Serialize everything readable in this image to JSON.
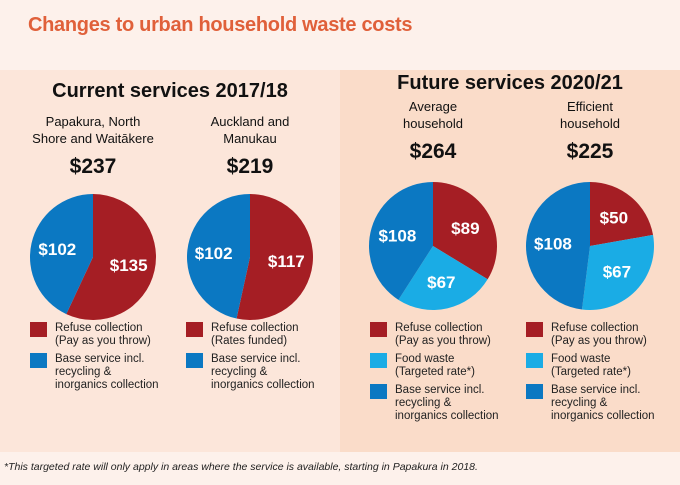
{
  "title": "Changes to urban household waste costs",
  "colors": {
    "refuse": "#a51e24",
    "food": "#1aace5",
    "base": "#0b78c2"
  },
  "chart_data": [
    {
      "type": "pie",
      "group": "Current services 2017/18",
      "subtitle": "Papakura, North Shore and Waitākere",
      "total": "$237",
      "slices": [
        {
          "label": "$135",
          "value": 135,
          "category": "refuse"
        },
        {
          "label": "$102",
          "value": 102,
          "category": "base"
        }
      ]
    },
    {
      "type": "pie",
      "group": "Current services 2017/18",
      "subtitle": "Auckland and Manukau",
      "total": "$219",
      "slices": [
        {
          "label": "$117",
          "value": 117,
          "category": "refuse"
        },
        {
          "label": "$102",
          "value": 102,
          "category": "base"
        }
      ]
    },
    {
      "type": "pie",
      "group": "Future services 2020/21",
      "subtitle": "Average household",
      "total": "$264",
      "slices": [
        {
          "label": "$89",
          "value": 89,
          "category": "refuse"
        },
        {
          "label": "$67",
          "value": 67,
          "category": "food"
        },
        {
          "label": "$108",
          "value": 108,
          "category": "base"
        }
      ]
    },
    {
      "type": "pie",
      "group": "Future services 2020/21",
      "subtitle": "Efficient household",
      "total": "$225",
      "slices": [
        {
          "label": "$50",
          "value": 50,
          "category": "refuse"
        },
        {
          "label": "$67",
          "value": 67,
          "category": "food"
        },
        {
          "label": "$108",
          "value": 108,
          "category": "base"
        }
      ]
    }
  ],
  "panels": {
    "current": "Current services 2017/18",
    "future": "Future services 2020/21"
  },
  "subtitles": [
    "Papakura, North\nShore and Waitākere",
    "Auckland and\nManukau",
    "Average\nhousehold",
    "Efficient\nhousehold"
  ],
  "legends": [
    [
      {
        "c": "refuse",
        "t": "Refuse collection\n(Pay as you throw)"
      },
      {
        "c": "base",
        "t": "Base service incl.\nrecycling &\ninorganics collection"
      }
    ],
    [
      {
        "c": "refuse",
        "t": "Refuse collection\n(Rates funded)"
      },
      {
        "c": "base",
        "t": "Base service incl.\nrecycling &\ninorganics collection"
      }
    ],
    [
      {
        "c": "refuse",
        "t": "Refuse collection\n(Pay as you throw)"
      },
      {
        "c": "food",
        "t": "Food waste\n(Targeted rate*)"
      },
      {
        "c": "base",
        "t": "Base service incl.\nrecycling &\ninorganics collection"
      }
    ],
    [
      {
        "c": "refuse",
        "t": "Refuse collection\n(Pay as you throw)"
      },
      {
        "c": "food",
        "t": "Food waste\n(Targeted rate*)"
      },
      {
        "c": "base",
        "t": "Base service incl.\nrecycling &\ninorganics collection"
      }
    ]
  ],
  "footnote": "*This targeted rate will only apply in areas where the service is available, starting in Papakura in 2018."
}
